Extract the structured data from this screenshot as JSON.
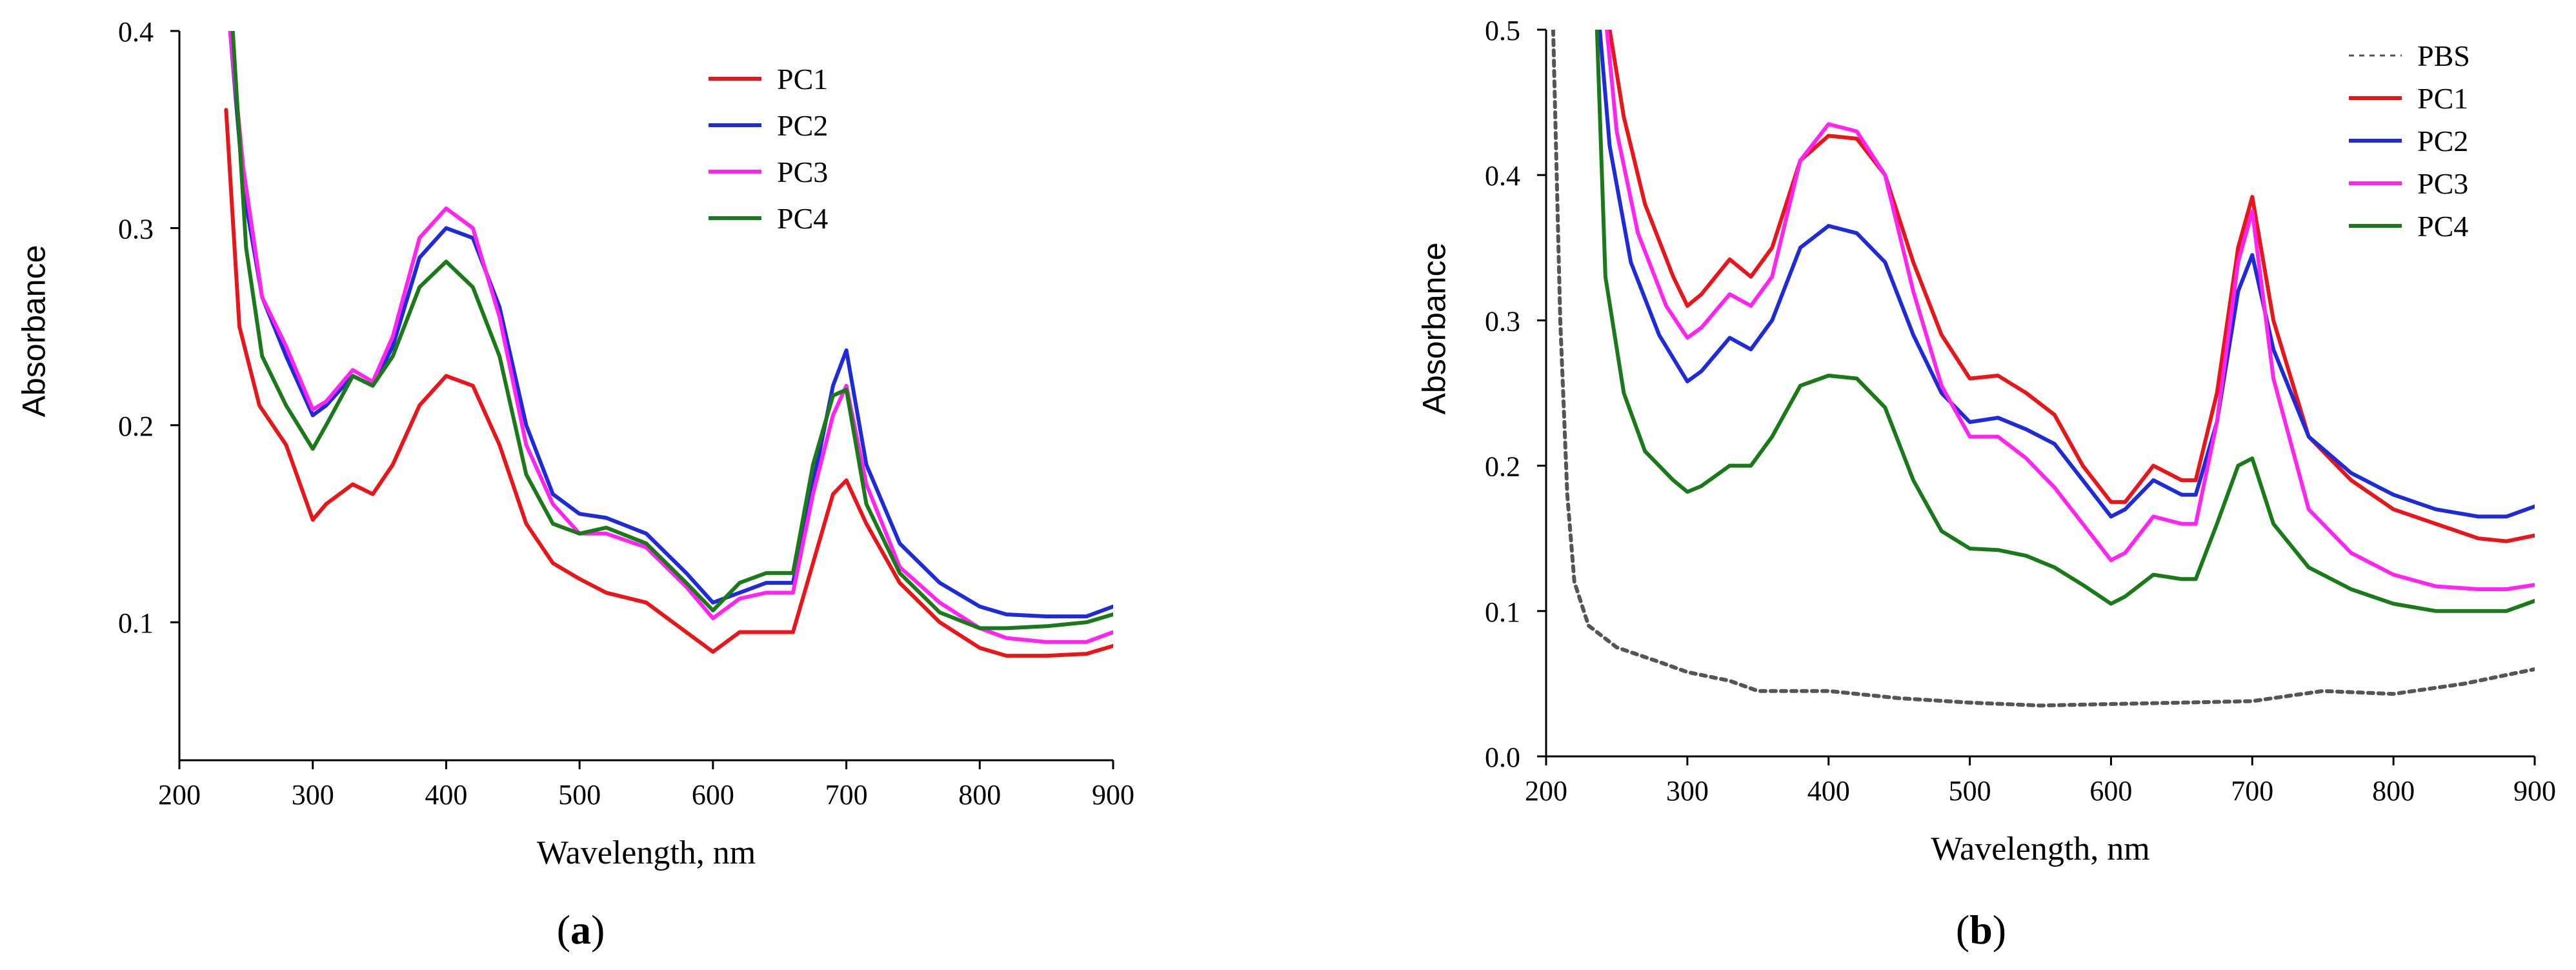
{
  "chart_data": [
    {
      "type": "line",
      "panel": "a",
      "panel_label": "a",
      "xlabel": "Wavelength, nm",
      "ylabel": "Absorbance",
      "xlim": [
        200,
        900
      ],
      "ylim": [
        0.03,
        0.4
      ],
      "xticks": [
        200,
        300,
        400,
        500,
        600,
        700,
        800,
        900
      ],
      "yticks": [
        0.1,
        0.2,
        0.3,
        0.4
      ],
      "ytick_labels": [
        "0.1",
        "0.2",
        "0.3",
        "0.4"
      ],
      "legend_position": "top-center",
      "series": [
        {
          "name": "PC1",
          "color": "#e8161b",
          "dash": "",
          "x": [
            235,
            245,
            260,
            280,
            300,
            310,
            330,
            345,
            360,
            380,
            400,
            420,
            440,
            460,
            480,
            500,
            520,
            550,
            580,
            600,
            620,
            640,
            660,
            675,
            690,
            700,
            715,
            740,
            770,
            800,
            820,
            850,
            880,
            900
          ],
          "y": [
            0.36,
            0.25,
            0.21,
            0.19,
            0.152,
            0.16,
            0.17,
            0.165,
            0.18,
            0.21,
            0.225,
            0.22,
            0.19,
            0.15,
            0.13,
            0.122,
            0.115,
            0.11,
            0.095,
            0.085,
            0.095,
            0.095,
            0.095,
            0.13,
            0.165,
            0.172,
            0.15,
            0.12,
            0.1,
            0.087,
            0.083,
            0.083,
            0.084,
            0.088
          ]
        },
        {
          "name": "PC2",
          "color": "#1f2bd9",
          "dash": "",
          "x": [
            238,
            248,
            262,
            280,
            300,
            310,
            330,
            345,
            360,
            380,
            400,
            420,
            440,
            460,
            480,
            500,
            520,
            550,
            580,
            600,
            620,
            640,
            660,
            675,
            690,
            700,
            715,
            740,
            770,
            800,
            820,
            850,
            880,
            900
          ],
          "y": [
            0.4,
            0.32,
            0.265,
            0.235,
            0.205,
            0.21,
            0.225,
            0.22,
            0.24,
            0.285,
            0.3,
            0.295,
            0.26,
            0.2,
            0.165,
            0.155,
            0.153,
            0.145,
            0.125,
            0.11,
            0.115,
            0.12,
            0.12,
            0.17,
            0.22,
            0.238,
            0.18,
            0.14,
            0.12,
            0.108,
            0.104,
            0.103,
            0.103,
            0.108
          ]
        },
        {
          "name": "PC3",
          "color": "#ff24f0",
          "dash": "",
          "x": [
            238,
            248,
            262,
            280,
            300,
            310,
            330,
            345,
            360,
            380,
            400,
            420,
            440,
            460,
            480,
            500,
            520,
            550,
            580,
            600,
            620,
            640,
            660,
            675,
            690,
            700,
            715,
            740,
            770,
            800,
            820,
            850,
            880,
            900
          ],
          "y": [
            0.4,
            0.33,
            0.265,
            0.24,
            0.208,
            0.212,
            0.228,
            0.222,
            0.245,
            0.295,
            0.31,
            0.3,
            0.255,
            0.19,
            0.16,
            0.145,
            0.145,
            0.138,
            0.118,
            0.102,
            0.112,
            0.115,
            0.115,
            0.165,
            0.205,
            0.22,
            0.17,
            0.128,
            0.11,
            0.097,
            0.092,
            0.09,
            0.09,
            0.095
          ]
        },
        {
          "name": "PC4",
          "color": "#1a7a1a",
          "dash": "",
          "x": [
            240,
            250,
            262,
            280,
            300,
            310,
            330,
            345,
            360,
            380,
            400,
            420,
            440,
            460,
            480,
            500,
            520,
            550,
            580,
            600,
            620,
            640,
            660,
            675,
            690,
            700,
            715,
            740,
            770,
            800,
            820,
            850,
            880,
            900
          ],
          "y": [
            0.4,
            0.29,
            0.235,
            0.21,
            0.188,
            0.2,
            0.225,
            0.22,
            0.235,
            0.27,
            0.283,
            0.27,
            0.235,
            0.175,
            0.15,
            0.145,
            0.148,
            0.14,
            0.12,
            0.106,
            0.12,
            0.125,
            0.125,
            0.18,
            0.215,
            0.218,
            0.16,
            0.125,
            0.105,
            0.097,
            0.097,
            0.098,
            0.1,
            0.104
          ]
        }
      ]
    },
    {
      "type": "line",
      "panel": "b",
      "panel_label": "b",
      "xlabel": "Wavelength, nm",
      "ylabel": "Absorbance",
      "xlim": [
        200,
        900
      ],
      "ylim": [
        0.0,
        0.5
      ],
      "xticks": [
        200,
        300,
        400,
        500,
        600,
        700,
        800,
        900
      ],
      "yticks": [
        0.0,
        0.1,
        0.2,
        0.3,
        0.4,
        0.5
      ],
      "ytick_labels": [
        "0.0",
        "0.1",
        "0.2",
        "0.3",
        "0.4",
        "0.5"
      ],
      "legend_position": "top-right",
      "series": [
        {
          "name": "PBS",
          "color": "#555555",
          "dash": "8,8",
          "x": [
            205,
            210,
            215,
            220,
            230,
            250,
            280,
            300,
            330,
            350,
            400,
            450,
            500,
            550,
            600,
            650,
            700,
            750,
            800,
            850,
            900
          ],
          "y": [
            0.5,
            0.3,
            0.18,
            0.12,
            0.09,
            0.075,
            0.065,
            0.058,
            0.052,
            0.045,
            0.045,
            0.04,
            0.037,
            0.035,
            0.036,
            0.037,
            0.038,
            0.045,
            0.043,
            0.05,
            0.06
          ]
        },
        {
          "name": "PC1",
          "color": "#e8161b",
          "dash": "",
          "x": [
            245,
            255,
            270,
            290,
            300,
            310,
            330,
            345,
            360,
            380,
            400,
            420,
            440,
            460,
            480,
            500,
            520,
            540,
            560,
            580,
            600,
            610,
            630,
            650,
            660,
            675,
            690,
            700,
            715,
            740,
            770,
            800,
            830,
            860,
            880,
            900
          ],
          "y": [
            0.5,
            0.44,
            0.38,
            0.33,
            0.31,
            0.318,
            0.342,
            0.33,
            0.35,
            0.41,
            0.427,
            0.425,
            0.4,
            0.34,
            0.29,
            0.26,
            0.262,
            0.25,
            0.235,
            0.2,
            0.175,
            0.175,
            0.2,
            0.19,
            0.19,
            0.25,
            0.35,
            0.385,
            0.3,
            0.22,
            0.19,
            0.17,
            0.16,
            0.15,
            0.148,
            0.152
          ]
        },
        {
          "name": "PC2",
          "color": "#1f2bd9",
          "dash": "",
          "x": [
            238,
            245,
            260,
            280,
            300,
            310,
            330,
            345,
            360,
            380,
            400,
            420,
            440,
            460,
            480,
            500,
            520,
            540,
            560,
            580,
            600,
            610,
            630,
            650,
            660,
            675,
            690,
            700,
            715,
            740,
            770,
            800,
            830,
            860,
            880,
            900
          ],
          "y": [
            0.5,
            0.42,
            0.34,
            0.29,
            0.258,
            0.265,
            0.288,
            0.28,
            0.3,
            0.35,
            0.365,
            0.36,
            0.34,
            0.29,
            0.25,
            0.23,
            0.233,
            0.225,
            0.215,
            0.19,
            0.165,
            0.17,
            0.19,
            0.18,
            0.18,
            0.23,
            0.32,
            0.345,
            0.28,
            0.22,
            0.195,
            0.18,
            0.17,
            0.165,
            0.165,
            0.172
          ]
        },
        {
          "name": "PC3",
          "color": "#ff24f0",
          "dash": "",
          "x": [
            243,
            250,
            265,
            285,
            300,
            310,
            330,
            345,
            360,
            380,
            400,
            420,
            440,
            460,
            480,
            500,
            520,
            540,
            560,
            580,
            600,
            610,
            630,
            650,
            660,
            675,
            690,
            700,
            715,
            740,
            770,
            800,
            830,
            860,
            880,
            900
          ],
          "y": [
            0.5,
            0.43,
            0.36,
            0.31,
            0.288,
            0.295,
            0.318,
            0.31,
            0.33,
            0.41,
            0.435,
            0.43,
            0.4,
            0.32,
            0.255,
            0.22,
            0.22,
            0.205,
            0.185,
            0.16,
            0.135,
            0.14,
            0.165,
            0.16,
            0.16,
            0.23,
            0.34,
            0.375,
            0.26,
            0.17,
            0.14,
            0.125,
            0.117,
            0.115,
            0.115,
            0.118
          ]
        },
        {
          "name": "PC4",
          "color": "#1a7a1a",
          "dash": "",
          "x": [
            236,
            242,
            255,
            270,
            290,
            300,
            310,
            330,
            345,
            360,
            380,
            400,
            420,
            440,
            460,
            480,
            500,
            520,
            540,
            560,
            580,
            600,
            610,
            630,
            650,
            660,
            675,
            690,
            700,
            715,
            740,
            770,
            800,
            830,
            860,
            880,
            900
          ],
          "y": [
            0.5,
            0.33,
            0.25,
            0.21,
            0.19,
            0.182,
            0.186,
            0.2,
            0.2,
            0.22,
            0.255,
            0.262,
            0.26,
            0.24,
            0.19,
            0.155,
            0.143,
            0.142,
            0.138,
            0.13,
            0.118,
            0.105,
            0.11,
            0.125,
            0.122,
            0.122,
            0.16,
            0.2,
            0.205,
            0.16,
            0.13,
            0.115,
            0.105,
            0.1,
            0.1,
            0.1,
            0.107
          ]
        }
      ]
    }
  ]
}
